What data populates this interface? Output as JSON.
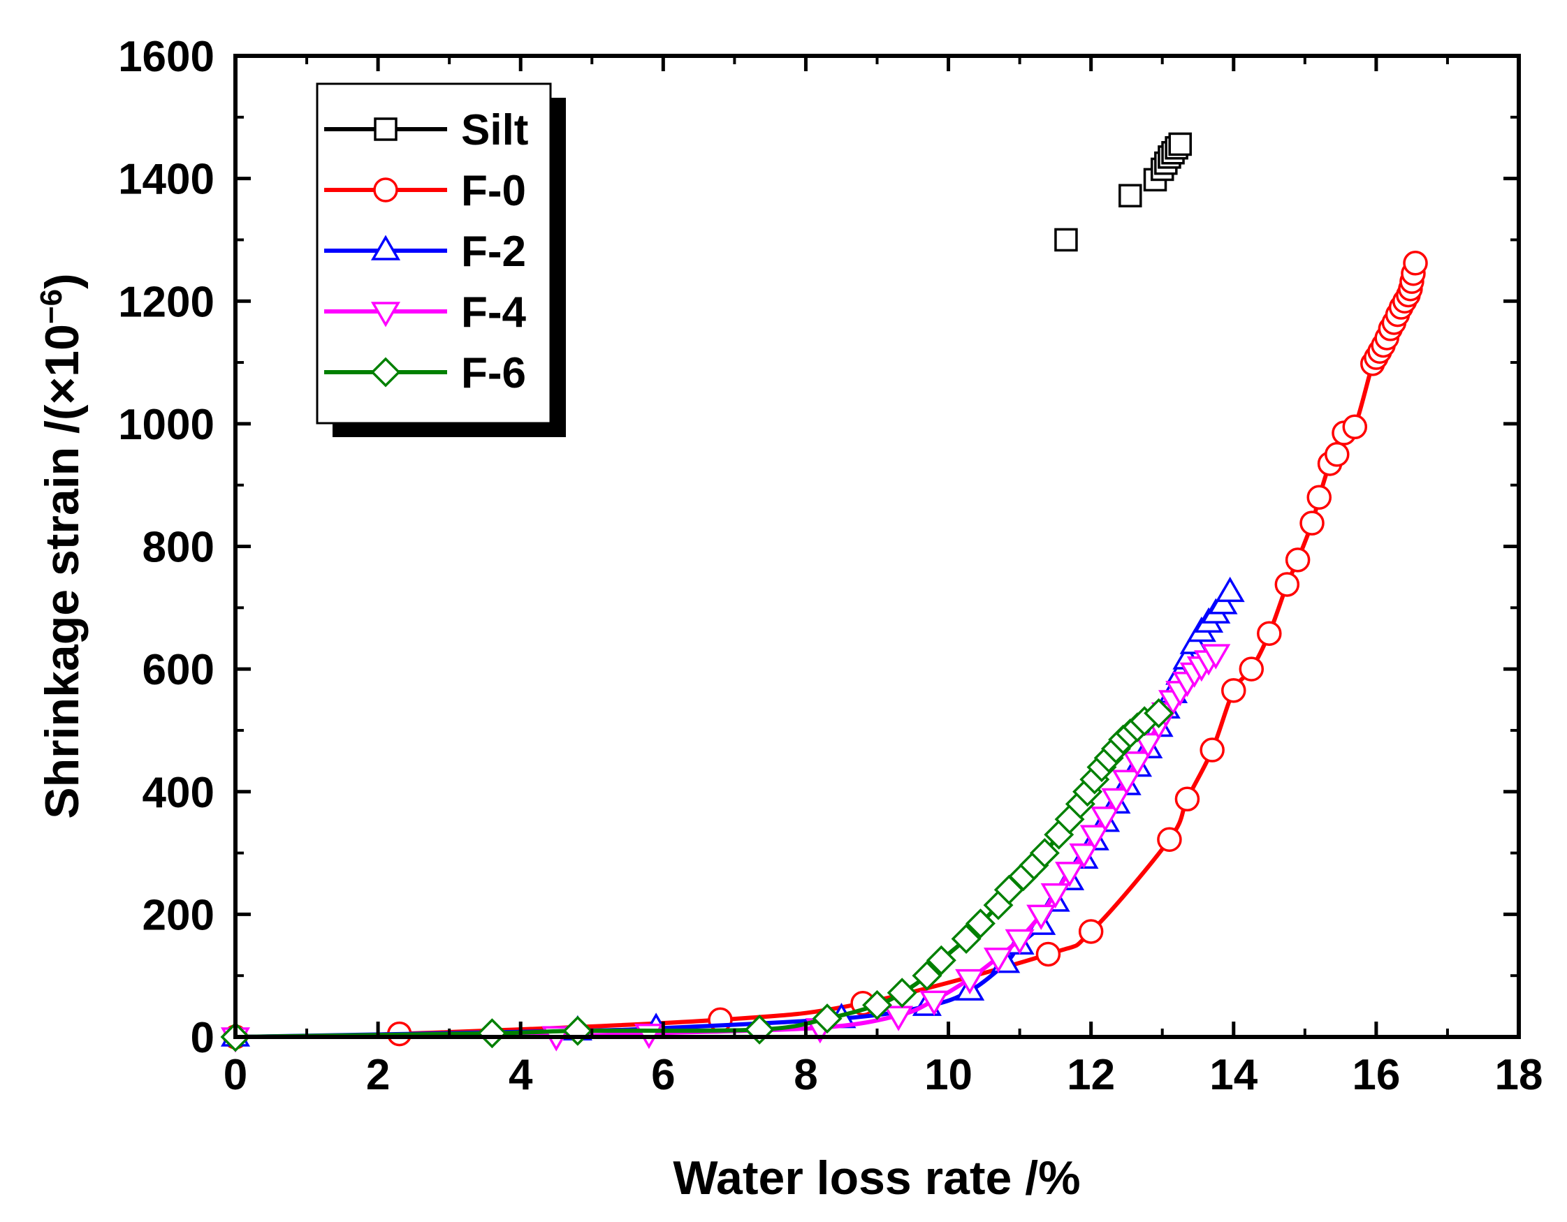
{
  "chart_data": {
    "type": "scatter",
    "title": "",
    "xlabel": "Water loss rate /%",
    "ylabel": "Shrinkage strain /(×10",
    "ylabel_exponent": "−6",
    "ylabel_close": ")",
    "xlim": [
      0,
      18
    ],
    "ylim": [
      0,
      1600
    ],
    "x_ticks": [
      0,
      2,
      4,
      6,
      8,
      10,
      12,
      14,
      16,
      18
    ],
    "y_ticks": [
      0,
      200,
      400,
      600,
      800,
      1000,
      1200,
      1400,
      1600
    ],
    "grid": false,
    "legend_position": "top-left",
    "series": [
      {
        "name": "Silt",
        "color": "#000000",
        "marker": "square",
        "line": false,
        "x": [
          11.65,
          12.55,
          12.9,
          13.0,
          13.05,
          13.1,
          13.15,
          13.2,
          13.25
        ],
        "y": [
          1300,
          1372,
          1398,
          1415,
          1425,
          1435,
          1442,
          1450,
          1456
        ]
      },
      {
        "name": "F-0",
        "color": "#ff0000",
        "marker": "circle",
        "line": true,
        "x": [
          0,
          2.3,
          6.8,
          8.8,
          11.4,
          12.0,
          13.1,
          13.35,
          13.7,
          14.0,
          14.25,
          14.5,
          14.75,
          14.9,
          15.1,
          15.2,
          15.35,
          15.45,
          15.55,
          15.7,
          15.95,
          16.0,
          16.05,
          16.1,
          16.15,
          16.2,
          16.25,
          16.3,
          16.35,
          16.4,
          16.45,
          16.48,
          16.5,
          16.52,
          16.55
        ],
        "y": [
          0,
          5,
          28,
          55,
          135,
          172,
          322,
          388,
          468,
          565,
          600,
          658,
          738,
          778,
          838,
          880,
          935,
          950,
          985,
          995,
          1098,
          1108,
          1118,
          1128,
          1140,
          1155,
          1165,
          1178,
          1190,
          1200,
          1210,
          1220,
          1232,
          1245,
          1262
        ]
      },
      {
        "name": "F-2",
        "color": "#0000ff",
        "marker": "triangle-up",
        "line": true,
        "x": [
          0,
          4.8,
          5.9,
          8.5,
          9.7,
          10.3,
          10.8,
          11.0,
          11.3,
          11.5,
          11.7,
          11.9,
          12.05,
          12.2,
          12.35,
          12.5,
          12.65,
          12.8,
          12.95,
          13.05,
          13.15,
          13.25,
          13.35,
          13.45,
          13.55,
          13.65,
          13.75,
          13.85,
          13.95
        ],
        "y": [
          0,
          10,
          14,
          30,
          50,
          75,
          120,
          150,
          182,
          220,
          255,
          290,
          320,
          350,
          380,
          410,
          440,
          470,
          505,
          535,
          560,
          590,
          615,
          640,
          660,
          675,
          690,
          705,
          725
        ]
      },
      {
        "name": "F-4",
        "color": "#ff00ff",
        "marker": "triangle-down",
        "line": true,
        "x": [
          0,
          4.5,
          5.8,
          8.2,
          9.3,
          9.8,
          10.3,
          10.7,
          11.0,
          11.3,
          11.5,
          11.7,
          11.9,
          12.05,
          12.2,
          12.35,
          12.5,
          12.65,
          12.8,
          12.95,
          13.05,
          13.15,
          13.25,
          13.35,
          13.45,
          13.55,
          13.65,
          13.75
        ],
        "y": [
          0,
          2,
          6,
          15,
          35,
          60,
          95,
          130,
          160,
          200,
          235,
          270,
          300,
          330,
          360,
          390,
          420,
          450,
          480,
          510,
          530,
          550,
          565,
          580,
          595,
          605,
          615,
          625
        ]
      },
      {
        "name": "F-6",
        "color": "#008000",
        "marker": "diamond",
        "line": true,
        "x": [
          0,
          3.6,
          4.8,
          7.35,
          8.3,
          9.0,
          9.35,
          9.7,
          9.9,
          10.25,
          10.45,
          10.7,
          10.85,
          11.05,
          11.2,
          11.35,
          11.55,
          11.7,
          11.85,
          11.95,
          12.05,
          12.15,
          12.25,
          12.35,
          12.45,
          12.55,
          12.65,
          12.75,
          12.95
        ],
        "y": [
          0,
          6,
          10,
          12,
          30,
          52,
          72,
          100,
          125,
          160,
          185,
          215,
          240,
          262,
          280,
          300,
          330,
          355,
          380,
          400,
          420,
          440,
          455,
          470,
          485,
          495,
          505,
          515,
          528
        ]
      }
    ]
  }
}
